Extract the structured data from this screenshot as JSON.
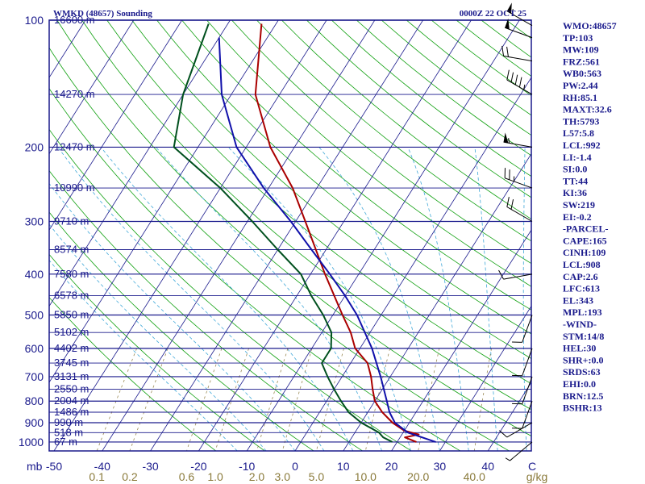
{
  "header": {
    "station": "WMKD (48657) Sounding",
    "time": "0000Z 22 OCT 25"
  },
  "chart_data": {
    "type": "skew-t",
    "title": "WMKD (48657) Sounding",
    "valid_time": "0000Z 22 OCT 25",
    "pressure_axis": {
      "levels": [
        100,
        200,
        300,
        400,
        500,
        600,
        700,
        800,
        900,
        1000
      ],
      "labels": [
        "100",
        "200",
        "300",
        "400",
        "500",
        "600",
        "700",
        "800",
        "900",
        "1000"
      ],
      "range_hpa": [
        100,
        1000
      ]
    },
    "temperature_axis": {
      "unit_label": "mb",
      "values": [
        -50,
        -40,
        -30,
        -20,
        -10,
        0,
        10,
        20,
        30,
        40
      ],
      "labels": [
        "-50",
        "-40",
        "-30",
        "-20",
        "-10",
        "0",
        "10",
        "20",
        "30",
        "40"
      ],
      "end_label": "C"
    },
    "mixing_ratio_axis": {
      "values": [
        0.1,
        0.2,
        0.6,
        1.0,
        2.0,
        3.0,
        5.0,
        10.0,
        20.0,
        40.0
      ],
      "labels": [
        "0.1",
        "0.2",
        "0.6",
        "1.0",
        "2.0",
        "3.0",
        "5.0",
        "10.0",
        "20.0",
        "40.0"
      ],
      "unit": "g/kg"
    },
    "height_levels": [
      {
        "p": 100,
        "label": "16600 m"
      },
      {
        "p": 150,
        "label": "14270 m"
      },
      {
        "p": 200,
        "label": "12470 m"
      },
      {
        "p": 250,
        "label": "10990 m"
      },
      {
        "p": 300,
        "label": "9710 m"
      },
      {
        "p": 350,
        "label": "8574 m"
      },
      {
        "p": 400,
        "label": "7580 m"
      },
      {
        "p": 450,
        "label": "6578 m"
      },
      {
        "p": 500,
        "label": "5850 m"
      },
      {
        "p": 550,
        "label": "5102 m"
      },
      {
        "p": 600,
        "label": "4402 m"
      },
      {
        "p": 650,
        "label": "3745 m"
      },
      {
        "p": 700,
        "label": "3131 m"
      },
      {
        "p": 750,
        "label": "2550 m"
      },
      {
        "p": 800,
        "label": "2004 m"
      },
      {
        "p": 850,
        "label": "1486 m"
      },
      {
        "p": 900,
        "label": "990 m"
      },
      {
        "p": 950,
        "label": "518 m"
      },
      {
        "p": 1000,
        "label": "67 m"
      }
    ],
    "series": [
      {
        "name": "Temperature",
        "color": "#aa0000",
        "points": [
          [
            102,
            -63
          ],
          [
            150,
            -55
          ],
          [
            200,
            -45
          ],
          [
            250,
            -35
          ],
          [
            300,
            -28
          ],
          [
            400,
            -17
          ],
          [
            500,
            -8
          ],
          [
            550,
            -4
          ],
          [
            600,
            -1
          ],
          [
            650,
            3.5
          ],
          [
            700,
            6
          ],
          [
            750,
            8
          ],
          [
            800,
            10
          ],
          [
            850,
            13
          ],
          [
            900,
            16.5
          ],
          [
            940,
            20
          ],
          [
            960,
            23.5
          ],
          [
            975,
            21
          ],
          [
            1000,
            24
          ]
        ]
      },
      {
        "name": "Dewpoint",
        "color": "#00501e",
        "points": [
          [
            102,
            -74
          ],
          [
            150,
            -70
          ],
          [
            200,
            -65
          ],
          [
            250,
            -50
          ],
          [
            300,
            -39
          ],
          [
            350,
            -30
          ],
          [
            400,
            -22
          ],
          [
            450,
            -17
          ],
          [
            500,
            -12
          ],
          [
            550,
            -8
          ],
          [
            600,
            -6
          ],
          [
            650,
            -6
          ],
          [
            700,
            -3
          ],
          [
            750,
            0
          ],
          [
            800,
            3
          ],
          [
            850,
            6
          ],
          [
            900,
            10
          ],
          [
            950,
            15
          ],
          [
            975,
            16.5
          ],
          [
            1000,
            19
          ]
        ]
      },
      {
        "name": "Parcel",
        "color": "#1010aa",
        "points": [
          [
            110,
            -70
          ],
          [
            150,
            -62
          ],
          [
            200,
            -52
          ],
          [
            250,
            -41
          ],
          [
            300,
            -31
          ],
          [
            350,
            -23
          ],
          [
            400,
            -16
          ],
          [
            450,
            -10
          ],
          [
            500,
            -5
          ],
          [
            600,
            2.5
          ],
          [
            700,
            8
          ],
          [
            800,
            12.5
          ],
          [
            850,
            14.5
          ],
          [
            900,
            17
          ],
          [
            950,
            21
          ],
          [
            1000,
            28
          ]
        ]
      }
    ],
    "wind_barbs": [
      {
        "p": 103,
        "dir": 300,
        "kt": 55
      },
      {
        "p": 110,
        "dir": 290,
        "kt": 50
      },
      {
        "p": 125,
        "dir": 280,
        "kt": 20
      },
      {
        "p": 150,
        "dir": 300,
        "kt": 45
      },
      {
        "p": 200,
        "dir": 280,
        "kt": 55
      },
      {
        "p": 250,
        "dir": 290,
        "kt": 25
      },
      {
        "p": 300,
        "dir": 300,
        "kt": 20
      },
      {
        "p": 400,
        "dir": 260,
        "kt": 10
      },
      {
        "p": 500,
        "dir": 200,
        "kt": 10
      },
      {
        "p": 600,
        "dir": 200,
        "kt": 10
      },
      {
        "p": 700,
        "dir": 200,
        "kt": 10
      },
      {
        "p": 800,
        "dir": 200,
        "kt": 10
      },
      {
        "p": 900,
        "dir": 240,
        "kt": 10
      },
      {
        "p": 1000,
        "dir": 230,
        "kt": 5
      }
    ]
  },
  "indices": [
    "WMO:48657",
    "TP:103",
    "MW:109",
    "FRZ:561",
    "WB0:563",
    "PW:2.44",
    "RH:85.1",
    "MAXT:32.6",
    "TH:5793",
    "L57:5.8",
    "LCL:992",
    "LI:-1.4",
    "SI:0.0",
    "TT:44",
    "KI:36",
    "SW:219",
    "EI:-0.2",
    "-PARCEL-",
    "CAPE:165",
    "CINH:109",
    "LCL:908",
    "CAP:2.6",
    "LFC:613",
    "EL:343",
    "MPL:193",
    "-WIND-",
    "STM:14/8",
    "HEL:30",
    "SHR+:0.0",
    "SRDS:63",
    "EHI:0.0",
    "BRN:12.5",
    "BSHR:13"
  ],
  "colors": {
    "frame": "#1a1a8c",
    "isobar": "#1a1a8c",
    "isotherm": "#1a1a8c",
    "dry_adiabat": "#10a010",
    "moist_adiabat": "#40a8d8",
    "mixing_ratio": "#9a8a55",
    "temperature": "#aa0000",
    "dewpoint": "#00501e",
    "parcel": "#1010aa",
    "label_text": "#1a1a8c",
    "mix_label_text": "#8a7a3a"
  }
}
